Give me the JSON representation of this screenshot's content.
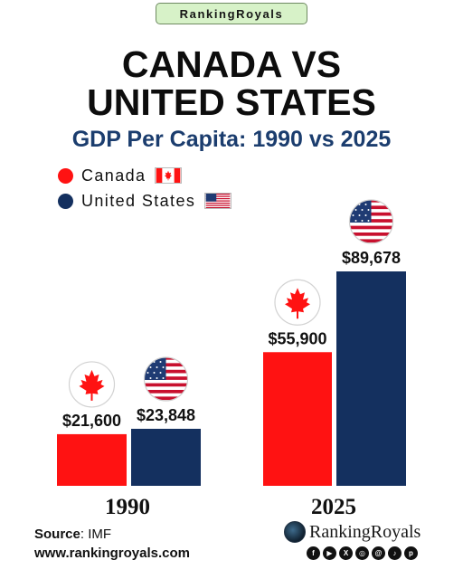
{
  "brand_pill": "RankingRoyals",
  "title_line1": "CANADA  VS",
  "title_line2": "UNITED STATES",
  "subtitle": "GDP Per Capita: 1990 vs 2025",
  "legend": [
    {
      "label": "Canada",
      "color": "#ff1212",
      "flag": "canada-flag-icon"
    },
    {
      "label": "United States",
      "color": "#14305f",
      "flag": "usa-flag-icon"
    }
  ],
  "chart_data": {
    "type": "bar",
    "title": "GDP Per Capita: 1990 vs 2025",
    "categories": [
      "1990",
      "2025"
    ],
    "series": [
      {
        "name": "Canada",
        "values": [
          21600,
          55900
        ],
        "labels": [
          "$21,600",
          "$55,900"
        ],
        "color": "#ff1212"
      },
      {
        "name": "United States",
        "values": [
          23848,
          89678
        ],
        "labels": [
          "$23,848",
          "$89,678"
        ],
        "color": "#14305f"
      }
    ],
    "xlabel": "",
    "ylabel": "",
    "grid": false,
    "legend_position": "top-left"
  },
  "footer": {
    "source_label": "Source",
    "source_value": ": IMF",
    "website": "www.rankingroyals.com",
    "logo_name": "RankingRoyals",
    "social_icons": [
      "facebook-icon",
      "youtube-icon",
      "x-icon",
      "instagram-icon",
      "threads-icon",
      "tiktok-icon",
      "pinterest-icon"
    ]
  },
  "colors": {
    "canada": "#ff1212",
    "usa": "#14305f",
    "subtitle": "#1b3d6e",
    "pill_bg": "#d7f2c8"
  }
}
